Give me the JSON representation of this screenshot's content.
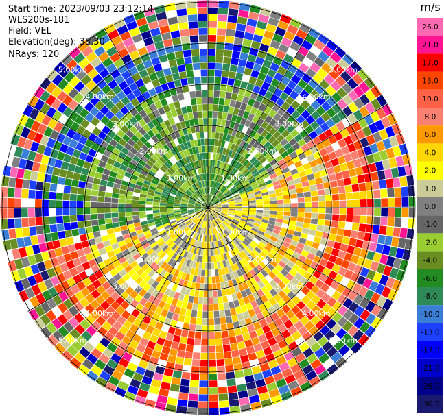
{
  "header": {
    "start_time": "Start time: 2023/09/03 23:12:14",
    "instrument": "WLS200s-181",
    "field": "Field: VEL",
    "elevation": "Elevation(deg): 35.30",
    "nrays": "NRays: 120"
  },
  "chart_data": {
    "type": "heatmap",
    "projection": "polar-ppi",
    "title": "",
    "field": "VEL",
    "units": "m/s",
    "n_rays": 120,
    "elevation_deg": 35.3,
    "range_rings_km": [
      "1.00km",
      "2.00km",
      "3.00km",
      "4.00km",
      "5.00km"
    ],
    "colorbar": {
      "label": "m/s",
      "ticks": [
        "26.0",
        "21.0",
        "17.0",
        "13.0",
        "10.0",
        "8.0",
        "6.0",
        "4.0",
        "2.0",
        "1.0",
        "0.0",
        "-1.0",
        "-2.0",
        "-4.0",
        "-6.0",
        "-8.0",
        "-10.0",
        "-13.0",
        "-17.0",
        "-21.0",
        "-26.0",
        "-30.0"
      ],
      "colors": [
        "#ff69b4",
        "#ff1493",
        "#ff0000",
        "#ff4500",
        "#ff6347",
        "#fa8072",
        "#ff9900",
        "#ffd700",
        "#ffff00",
        "#cccc99",
        "#808080",
        "#666666",
        "#9acd32",
        "#6b8e23",
        "#228b22",
        "#2e8b57",
        "#3a7fd5",
        "#1e40ff",
        "#0000ff",
        "#0000cd",
        "#00008b",
        "#191970"
      ]
    }
  }
}
